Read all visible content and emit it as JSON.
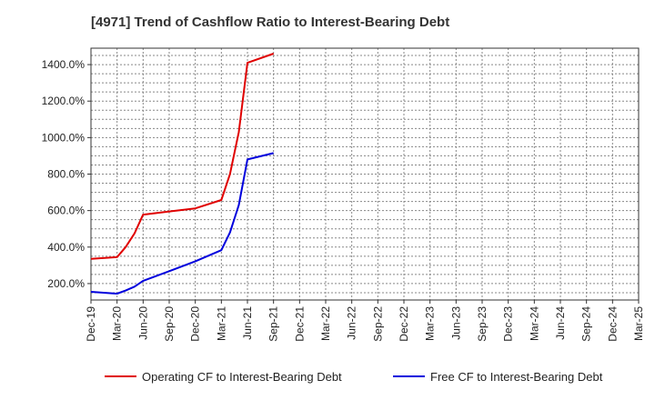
{
  "chart_data": {
    "type": "line",
    "title": "[4971]  Trend of Cashflow Ratio to Interest-Bearing Debt",
    "xlabel": "",
    "ylabel": "",
    "ylim": [
      110,
      1490
    ],
    "yticks": [
      200,
      400,
      600,
      800,
      1000,
      1200,
      1400
    ],
    "ytick_labels": [
      "200.0%",
      "400.0%",
      "600.0%",
      "800.0%",
      "1000.0%",
      "1200.0%",
      "1400.0%"
    ],
    "x_tick_labels": [
      "Dec-19",
      "Mar-20",
      "Jun-20",
      "Sep-20",
      "Dec-20",
      "Mar-21",
      "Jun-21",
      "Sep-21",
      "Dec-21",
      "Mar-22",
      "Jun-22",
      "Sep-22",
      "Dec-22",
      "Mar-23",
      "Jun-23",
      "Sep-23",
      "Dec-23",
      "Mar-24",
      "Jun-24",
      "Sep-24",
      "Dec-24",
      "Mar-25"
    ],
    "grid": true,
    "legend_position": "bottom",
    "series": [
      {
        "name": "Operating CF to Interest-Bearing Debt",
        "color": "#e00000",
        "points": [
          {
            "x": 0.0,
            "y": 335
          },
          {
            "x": 1.0,
            "y": 345
          },
          {
            "x": 1.33,
            "y": 400
          },
          {
            "x": 1.67,
            "y": 475
          },
          {
            "x": 2.0,
            "y": 578
          },
          {
            "x": 3.0,
            "y": 595
          },
          {
            "x": 4.0,
            "y": 612
          },
          {
            "x": 5.0,
            "y": 658
          },
          {
            "x": 5.33,
            "y": 800
          },
          {
            "x": 5.67,
            "y": 1030
          },
          {
            "x": 6.0,
            "y": 1410
          },
          {
            "x": 7.0,
            "y": 1460
          }
        ]
      },
      {
        "name": "Free CF to Interest-Bearing Debt",
        "color": "#0000dd",
        "points": [
          {
            "x": 0.0,
            "y": 155
          },
          {
            "x": 1.0,
            "y": 145
          },
          {
            "x": 1.33,
            "y": 162
          },
          {
            "x": 1.67,
            "y": 183
          },
          {
            "x": 2.0,
            "y": 215
          },
          {
            "x": 3.0,
            "y": 268
          },
          {
            "x": 4.0,
            "y": 322
          },
          {
            "x": 5.0,
            "y": 383
          },
          {
            "x": 5.33,
            "y": 480
          },
          {
            "x": 5.67,
            "y": 630
          },
          {
            "x": 6.0,
            "y": 880
          },
          {
            "x": 7.0,
            "y": 915
          }
        ]
      }
    ]
  }
}
